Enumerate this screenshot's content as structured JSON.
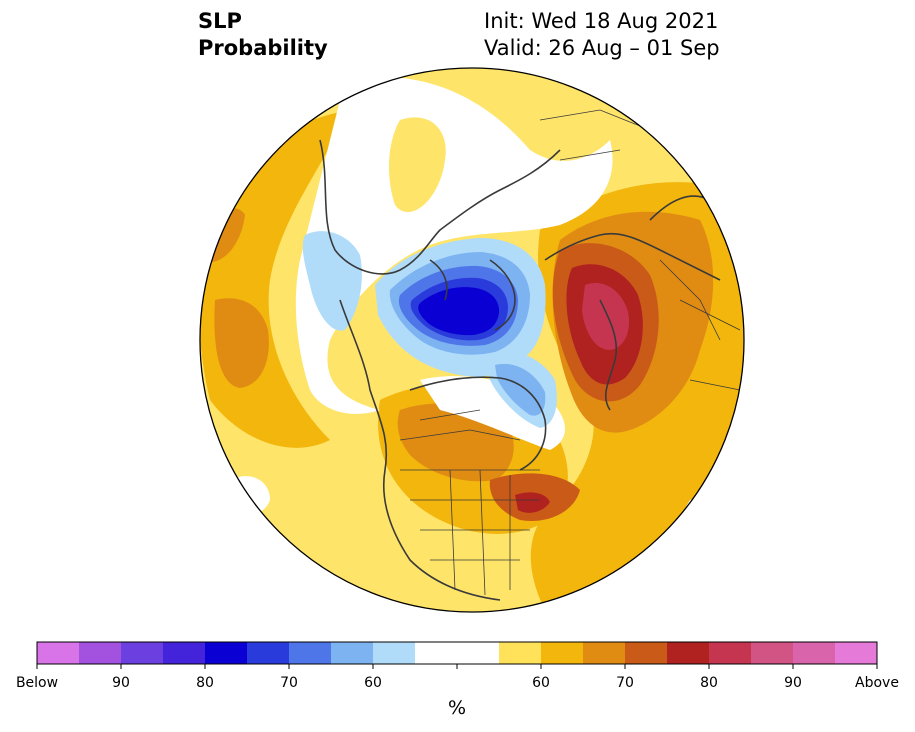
{
  "title": {
    "left_line1": "SLP",
    "left_line2": "Probability",
    "init": "Init: Wed 18 Aug 2021",
    "valid": "Valid: 26 Aug – 01 Sep"
  },
  "colorbar": {
    "colors": [
      "#d873e8",
      "#a352e0",
      "#6c3fe0",
      "#4424da",
      "#0a00d4",
      "#2a3bdb",
      "#4f76e9",
      "#7eb3f1",
      "#b0dcfa",
      "#ffffff",
      "#ffffff",
      "#ffe25a",
      "#f2b60d",
      "#e08c13",
      "#c95a18",
      "#b0221f",
      "#c63550",
      "#d15484",
      "#d964ac",
      "#e57ad8"
    ],
    "labels": [
      "Below",
      "90",
      "80",
      "70",
      "60",
      "60",
      "70",
      "80",
      "90",
      "Above"
    ],
    "unit": "%"
  },
  "map": {
    "background": "#ffe46a",
    "regions": [
      {
        "name": "below-normal-eurasia-arctic",
        "color": "#b0dcfa",
        "level": "below 55-60"
      },
      {
        "name": "below-normal-core",
        "color": "#0a00d4",
        "level": "below 80-85"
      },
      {
        "name": "above-normal-north-atlantic",
        "color": "#b0221f",
        "level": "above 75-80"
      },
      {
        "name": "above-normal-core",
        "color": "#c63550",
        "level": "above 80-85"
      }
    ]
  }
}
